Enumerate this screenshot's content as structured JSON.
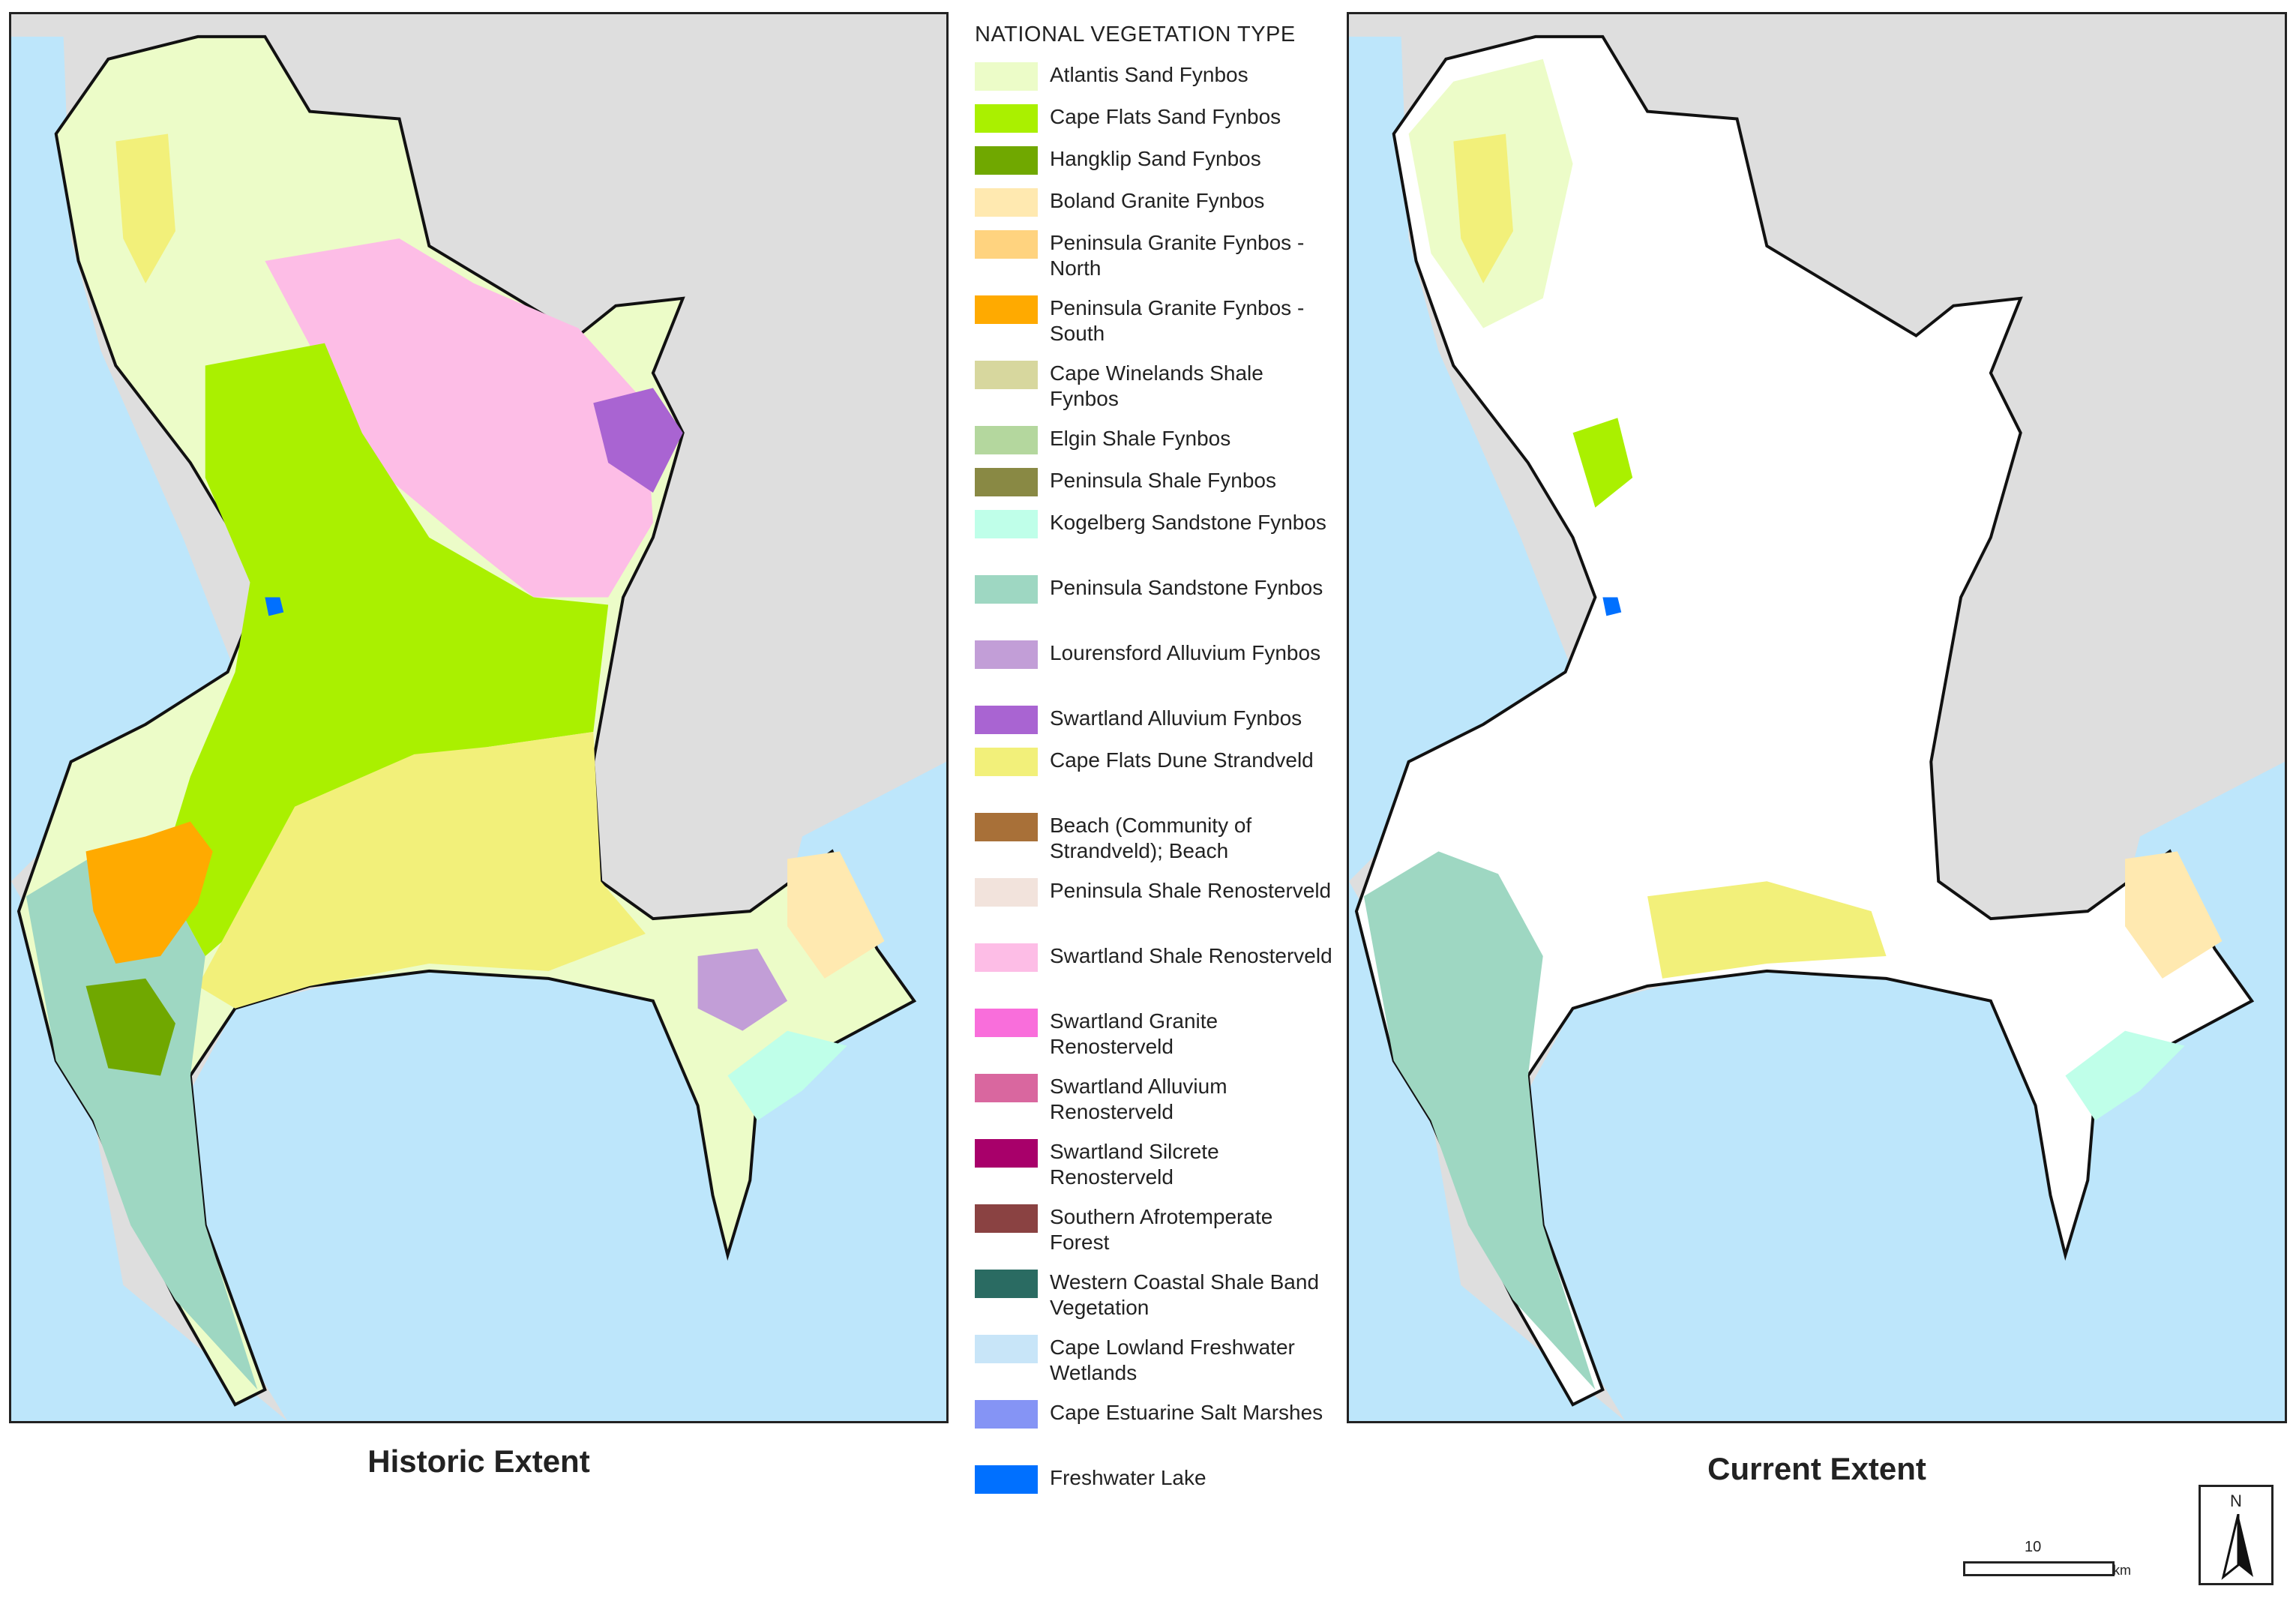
{
  "legend": {
    "title": "NATIONAL VEGETATION TYPE",
    "items": [
      {
        "label": "Atlantis Sand Fynbos",
        "color": "#ecfcc8"
      },
      {
        "label": "Cape Flats Sand Fynbos",
        "color": "#aaf000"
      },
      {
        "label": "Hangklip Sand Fynbos",
        "color": "#70a800"
      },
      {
        "label": "Boland Granite Fynbos",
        "color": "#ffe9b0"
      },
      {
        "label": "Peninsula Granite Fynbos - North",
        "color": "#ffd37f"
      },
      {
        "label": "Peninsula Granite Fynbos - South",
        "color": "#ffaa00"
      },
      {
        "label": "Cape Winelands Shale Fynbos",
        "color": "#d7d79e"
      },
      {
        "label": "Elgin Shale Fynbos",
        "color": "#b4d79e"
      },
      {
        "label": "Peninsula Shale Fynbos",
        "color": "#898944"
      },
      {
        "label": "Kogelberg Sandstone Fynbos",
        "color": "#bfffe9"
      },
      {
        "label": "Peninsula Sandstone Fynbos",
        "color": "#9ed7c2"
      },
      {
        "label": "Lourensford Alluvium Fynbos",
        "color": "#c29ed7"
      },
      {
        "label": "Swartland Alluvium Fynbos",
        "color": "#a964d2"
      },
      {
        "label": "Cape Flats Dune Strandveld",
        "color": "#f2f07a"
      },
      {
        "label": "Beach (Community of Strandveld); Beach",
        "color": "#a87038"
      },
      {
        "label": "Peninsula Shale Renosterveld",
        "color": "#f2e3dc"
      },
      {
        "label": "Swartland Shale Renosterveld",
        "color": "#fdbde6"
      },
      {
        "label": "Swartland Granite Renosterveld",
        "color": "#f96edb"
      },
      {
        "label": "Swartland Alluvium Renosterveld",
        "color": "#d9679f"
      },
      {
        "label": "Swartland Silcrete Renosterveld",
        "color": "#a8006a"
      },
      {
        "label": "Southern Afrotemperate Forest",
        "color": "#8a4242"
      },
      {
        "label": "Western Coastal Shale Band Vegetation",
        "color": "#2a6b62"
      },
      {
        "label": "Cape Lowland Freshwater Wetlands",
        "color": "#c8e5f8"
      },
      {
        "label": "Cape Estuarine Salt Marshes",
        "color": "#8594f5"
      },
      {
        "label": "Freshwater Lake",
        "color": "#0070ff"
      }
    ]
  },
  "maps": {
    "historic_title": "Historic Extent",
    "current_title": "Current Extent"
  },
  "north_arrow": {
    "label": "N"
  },
  "scale_bar": {
    "value": "10",
    "unit": "km"
  },
  "colors": {
    "sea": "#bde6fb",
    "land_outside": "#dedede",
    "transformed": "#ffffff"
  }
}
